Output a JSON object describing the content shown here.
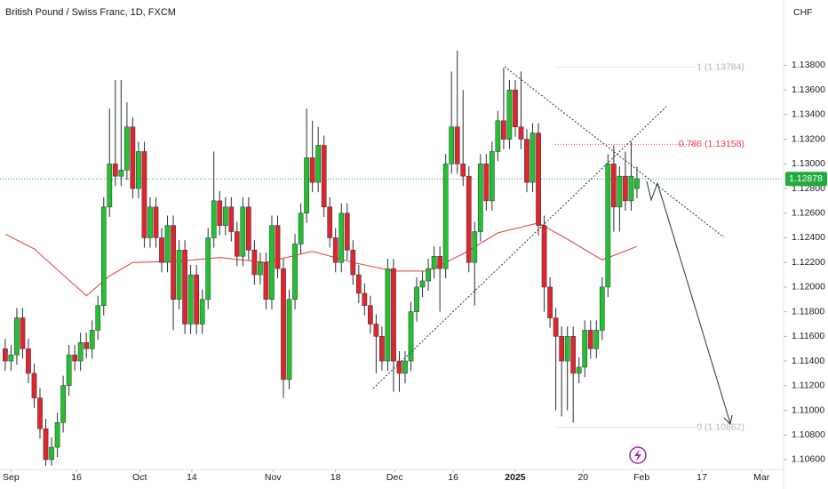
{
  "chart_data": {
    "type": "candlestick",
    "title": "British Pound / Swiss Franc, 1D, FXCM",
    "y_axis_unit": "CHF",
    "up_color": "#22c12e",
    "down_color": "#e0262d",
    "wick_color": "#2a2e39",
    "xlim": [
      -0.9,
      134.3
    ],
    "xticks": [
      {
        "value": 1,
        "label": "Sep"
      },
      {
        "value": 12.3,
        "label": "16"
      },
      {
        "value": 23.2,
        "label": "Oct"
      },
      {
        "value": 32.2,
        "label": "14"
      },
      {
        "value": 46.2,
        "label": "Nov"
      },
      {
        "value": 57,
        "label": "18"
      },
      {
        "value": 67.2,
        "label": "Dec"
      },
      {
        "value": 77.3,
        "label": "16"
      },
      {
        "value": 88,
        "label": "2025"
      },
      {
        "value": 99.7,
        "label": "20"
      },
      {
        "value": 109.8,
        "label": "Feb"
      },
      {
        "value": 120.2,
        "label": "17"
      },
      {
        "value": 130.5,
        "label": "Mar"
      }
    ],
    "ylim": [
      1.1052,
      1.1433
    ],
    "yticks": [
      {
        "value": 1.106,
        "label": "1.10600"
      },
      {
        "value": 1.108,
        "label": "1.10800"
      },
      {
        "value": 1.11,
        "label": "1.11000"
      },
      {
        "value": 1.112,
        "label": "1.11200"
      },
      {
        "value": 1.114,
        "label": "1.11400"
      },
      {
        "value": 1.116,
        "label": "1.11600"
      },
      {
        "value": 1.118,
        "label": "1.11800"
      },
      {
        "value": 1.12,
        "label": "1.12000"
      },
      {
        "value": 1.122,
        "label": "1.12200"
      },
      {
        "value": 1.124,
        "label": "1.12400"
      },
      {
        "value": 1.126,
        "label": "1.12600"
      },
      {
        "value": 1.128,
        "label": "1.12800"
      },
      {
        "value": 1.13,
        "label": "1.13000"
      },
      {
        "value": 1.132,
        "label": "1.13200"
      },
      {
        "value": 1.134,
        "label": "1.13400"
      },
      {
        "value": 1.136,
        "label": "1.13600"
      },
      {
        "value": 1.138,
        "label": "1.13800"
      }
    ],
    "open": [
      1.115,
      1.114,
      1.1145,
      1.1175,
      1.115,
      1.113,
      1.111,
      1.1085,
      1.106,
      1.107,
      1.109,
      1.112,
      1.1145,
      1.114,
      1.1155,
      1.115,
      1.1165,
      1.1185,
      1.1265,
      1.13,
      1.129,
      1.1295,
      1.133,
      1.128,
      1.131,
      1.124,
      1.1265,
      1.124,
      1.122,
      1.125,
      1.119,
      1.123,
      1.117,
      1.121,
      1.117,
      1.119,
      1.124,
      1.127,
      1.125,
      1.1265,
      1.1245,
      1.1225,
      1.1265,
      1.123,
      1.121,
      1.122,
      1.119,
      1.125,
      1.1215,
      1.1125,
      1.119,
      1.1235,
      1.126,
      1.1305,
      1.1285,
      1.1315,
      1.1265,
      1.124,
      1.122,
      1.126,
      1.123,
      1.121,
      1.1195,
      1.1185,
      1.117,
      1.116,
      1.114,
      1.1215,
      1.114,
      1.113,
      1.114,
      1.118,
      1.12,
      1.1205,
      1.1215,
      1.1225,
      1.1215,
      1.13,
      1.133,
      1.13,
      1.129,
      1.122,
      1.1245,
      1.13,
      1.127,
      1.131,
      1.1335,
      1.132,
      1.136,
      1.133,
      1.132,
      1.1285,
      1.1325,
      1.125,
      1.12,
      1.1175,
      1.116,
      1.114,
      1.116,
      1.113,
      1.1135,
      1.1165,
      1.115,
      1.1165,
      1.12,
      1.13,
      1.1265,
      1.129,
      1.127,
      1.128
    ],
    "high": [
      1.1158,
      1.1153,
      1.1183,
      1.1183,
      1.1158,
      1.1138,
      1.1118,
      1.1093,
      1.1078,
      1.1098,
      1.1128,
      1.1153,
      1.1153,
      1.1163,
      1.1163,
      1.1173,
      1.1193,
      1.1273,
      1.1345,
      1.1368,
      1.1368,
      1.135,
      1.1338,
      1.1318,
      1.1318,
      1.1273,
      1.1273,
      1.1248,
      1.1258,
      1.1258,
      1.1238,
      1.1238,
      1.1218,
      1.1218,
      1.1198,
      1.1248,
      1.131,
      1.1278,
      1.1273,
      1.1273,
      1.1253,
      1.1273,
      1.1273,
      1.1238,
      1.1228,
      1.1228,
      1.1258,
      1.1258,
      1.1223,
      1.1198,
      1.1243,
      1.1268,
      1.1345,
      1.1335,
      1.133,
      1.1323,
      1.1273,
      1.1248,
      1.1268,
      1.1268,
      1.1238,
      1.1218,
      1.1203,
      1.1193,
      1.1178,
      1.1168,
      1.1223,
      1.1223,
      1.1148,
      1.1148,
      1.1188,
      1.1208,
      1.1213,
      1.1223,
      1.1233,
      1.1233,
      1.1308,
      1.1375,
      1.1392,
      1.136,
      1.1298,
      1.1253,
      1.1308,
      1.1308,
      1.1318,
      1.1343,
      1.1378,
      1.1368,
      1.1368,
      1.1375,
      1.1328,
      1.1333,
      1.1333,
      1.1258,
      1.1208,
      1.1183,
      1.1168,
      1.1168,
      1.1168,
      1.1143,
      1.1173,
      1.1173,
      1.1173,
      1.1208,
      1.1308,
      1.1315,
      1.1298,
      1.131,
      1.1318,
      1.1298
    ],
    "low": [
      1.1132,
      1.1132,
      1.1137,
      1.1142,
      1.1122,
      1.1102,
      1.1077,
      1.1055,
      1.1055,
      1.1062,
      1.1082,
      1.1112,
      1.1132,
      1.1132,
      1.1142,
      1.1142,
      1.1157,
      1.1177,
      1.1257,
      1.1282,
      1.1282,
      1.1287,
      1.1272,
      1.1272,
      1.1232,
      1.1232,
      1.1232,
      1.1212,
      1.1212,
      1.1165,
      1.1182,
      1.1162,
      1.1162,
      1.1162,
      1.1162,
      1.1182,
      1.1232,
      1.1242,
      1.1242,
      1.1237,
      1.1217,
      1.1217,
      1.1222,
      1.1202,
      1.1202,
      1.1182,
      1.1182,
      1.1207,
      1.111,
      1.1117,
      1.1182,
      1.1227,
      1.1252,
      1.1277,
      1.1277,
      1.1257,
      1.1232,
      1.1212,
      1.1212,
      1.1222,
      1.1202,
      1.1187,
      1.1177,
      1.1162,
      1.113,
      1.1132,
      1.1132,
      1.1115,
      1.1115,
      1.1122,
      1.1132,
      1.1172,
      1.1192,
      1.1197,
      1.1207,
      1.118,
      1.1207,
      1.1292,
      1.1292,
      1.1282,
      1.1212,
      1.1185,
      1.1237,
      1.1262,
      1.1262,
      1.1302,
      1.1312,
      1.1312,
      1.1322,
      1.1312,
      1.1277,
      1.1277,
      1.1242,
      1.118,
      1.1167,
      1.11,
      1.1095,
      1.11,
      1.109,
      1.1122,
      1.1127,
      1.1142,
      1.1142,
      1.1157,
      1.1192,
      1.1245,
      1.1245,
      1.1262,
      1.1262,
      1.1272
    ],
    "close": [
      1.114,
      1.1145,
      1.1175,
      1.115,
      1.113,
      1.111,
      1.1085,
      1.106,
      1.107,
      1.109,
      1.112,
      1.1145,
      1.114,
      1.1155,
      1.115,
      1.1165,
      1.1185,
      1.1265,
      1.13,
      1.129,
      1.1295,
      1.133,
      1.128,
      1.131,
      1.124,
      1.1265,
      1.124,
      1.122,
      1.125,
      1.119,
      1.123,
      1.117,
      1.121,
      1.117,
      1.119,
      1.124,
      1.127,
      1.125,
      1.1265,
      1.1245,
      1.1225,
      1.1265,
      1.123,
      1.121,
      1.122,
      1.119,
      1.125,
      1.1215,
      1.1125,
      1.119,
      1.1235,
      1.126,
      1.1305,
      1.1285,
      1.1315,
      1.1265,
      1.124,
      1.122,
      1.126,
      1.123,
      1.121,
      1.1195,
      1.1185,
      1.117,
      1.116,
      1.114,
      1.1215,
      1.114,
      1.113,
      1.114,
      1.118,
      1.12,
      1.1205,
      1.1215,
      1.1225,
      1.1215,
      1.13,
      1.133,
      1.13,
      1.129,
      1.122,
      1.1245,
      1.13,
      1.127,
      1.131,
      1.1335,
      1.132,
      1.136,
      1.133,
      1.132,
      1.1285,
      1.1325,
      1.125,
      1.12,
      1.1175,
      1.116,
      1.114,
      1.116,
      1.113,
      1.1135,
      1.1165,
      1.115,
      1.1165,
      1.12,
      1.13,
      1.1265,
      1.129,
      1.127,
      1.129,
      1.1288
    ],
    "ma": {
      "color": "#e53935",
      "x": [
        0,
        5,
        14,
        18,
        22,
        30,
        37,
        45,
        53,
        60,
        67,
        73,
        79,
        85,
        92,
        97,
        103,
        109
      ],
      "values": [
        1.1243,
        1.1231,
        1.1193,
        1.1209,
        1.122,
        1.1221,
        1.1224,
        1.122,
        1.1229,
        1.122,
        1.1213,
        1.1213,
        1.1227,
        1.1244,
        1.1252,
        1.1239,
        1.1222,
        1.1233
      ]
    },
    "fib": [
      {
        "label": "1 (1.13784)",
        "value": 1.13784,
        "color": "#b2b5be"
      },
      {
        "label": "0.786 (1.13158)",
        "value": 1.13158,
        "color": "#f23645"
      },
      {
        "label": "0 (1.10862)",
        "value": 1.10862,
        "color": "#b2b5be"
      }
    ],
    "current_price": 1.12878,
    "current_color": "#22ab3a"
  }
}
